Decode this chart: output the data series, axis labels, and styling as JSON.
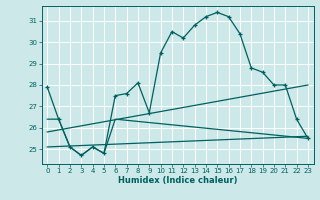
{
  "xlabel": "Humidex (Indice chaleur)",
  "xlim": [
    -0.5,
    23.5
  ],
  "ylim": [
    24.3,
    31.7
  ],
  "yticks": [
    25,
    26,
    27,
    28,
    29,
    30,
    31
  ],
  "xticks": [
    0,
    1,
    2,
    3,
    4,
    5,
    6,
    7,
    8,
    9,
    10,
    11,
    12,
    13,
    14,
    15,
    16,
    17,
    18,
    19,
    20,
    21,
    22,
    23
  ],
  "bg_color": "#cce8e8",
  "line_color": "#006060",
  "grid_color": "#ffffff",
  "lines": [
    {
      "x": [
        0,
        1,
        2,
        3,
        4,
        5,
        6,
        7,
        8,
        9,
        10,
        11,
        12,
        13,
        14,
        15,
        16,
        17,
        18,
        19,
        20,
        21,
        22,
        23
      ],
      "y": [
        27.9,
        26.4,
        25.1,
        24.7,
        25.1,
        24.8,
        27.5,
        27.6,
        28.1,
        26.7,
        29.5,
        30.5,
        30.2,
        30.8,
        31.2,
        31.4,
        31.2,
        30.4,
        28.8,
        28.6,
        28.0,
        28.0,
        26.4,
        25.5
      ],
      "marker": "+"
    },
    {
      "x": [
        0,
        1,
        2,
        3,
        4,
        5,
        6,
        23
      ],
      "y": [
        26.4,
        26.4,
        25.1,
        24.7,
        25.1,
        24.8,
        26.4,
        25.5
      ],
      "marker": null
    },
    {
      "x": [
        0,
        23
      ],
      "y": [
        25.1,
        25.6
      ],
      "marker": null
    },
    {
      "x": [
        0,
        23
      ],
      "y": [
        25.8,
        28.0
      ],
      "marker": null
    }
  ]
}
